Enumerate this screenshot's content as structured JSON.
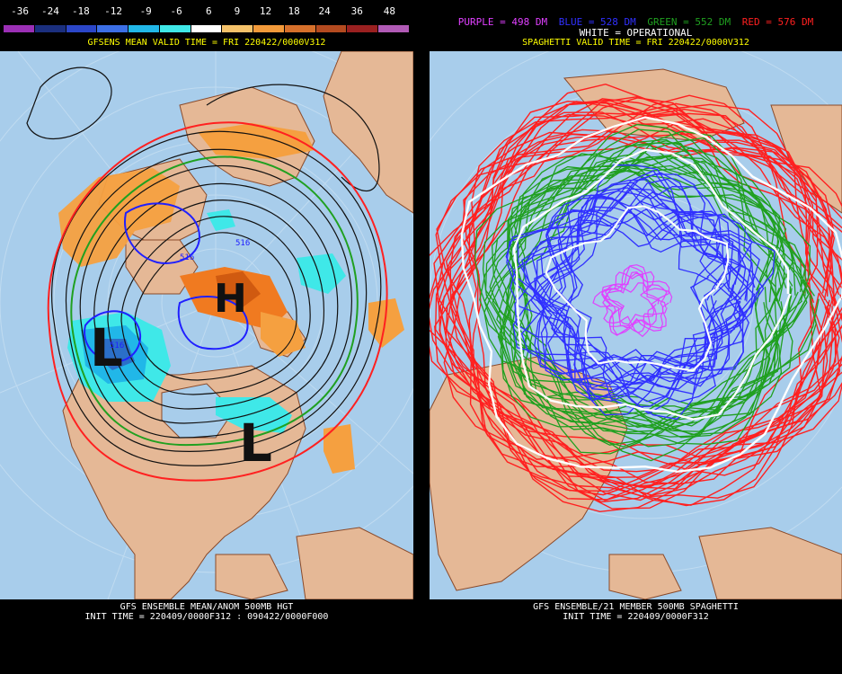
{
  "left_panel": {
    "colorbar": {
      "labels": [
        "-36",
        "-24",
        "-18",
        "-12",
        "-9",
        "-6",
        "6",
        "9",
        "12",
        "18",
        "24",
        "36",
        "48"
      ],
      "colors": [
        "#9b2fb5",
        "#1b2f7e",
        "#2b46c8",
        "#3c6fe6",
        "#21b7e8",
        "#3fe8e8",
        "#ffffff",
        "#f5c26a",
        "#f29a3a",
        "#d6702b",
        "#b34a1f",
        "#9a2020",
        "#b05ab5"
      ]
    },
    "header": "GFSENS MEAN VALID TIME = FRI 220422/0000V312",
    "footer_line1": "GFS ENSEMBLE MEAN/ANOM 500MB HGT",
    "footer_line2": "INIT TIME = 220409/0000F312 : 090422/0000F000",
    "annotations": {
      "high": "H",
      "low_west": "L",
      "low_east": "L"
    },
    "contour_labels": [
      "516",
      "516",
      "516"
    ]
  },
  "right_panel": {
    "legend": {
      "purple": "PURPLE = 498 DM",
      "blue": "BLUE = 528 DM",
      "green": "GREEN = 552 DM",
      "red": "RED = 576 DM"
    },
    "subtitle_white": "WHITE = OPERATIONAL",
    "header": "SPAGHETTI VALID TIME = FRI 220422/0000V312",
    "footer_line1": "GFS ENSEMBLE/21 MEMBER 500MB SPAGHETTI",
    "footer_line2": "INIT TIME = 220409/0000F312"
  },
  "colors": {
    "ocean": "#a8cdeb",
    "land": "#e5b896",
    "coast": "#8a4a2a",
    "header_text": "#ffff00",
    "purple": "#e040ff",
    "blue": "#3030ff",
    "green": "#20a020",
    "red": "#ff2020",
    "white": "#ffffff"
  }
}
